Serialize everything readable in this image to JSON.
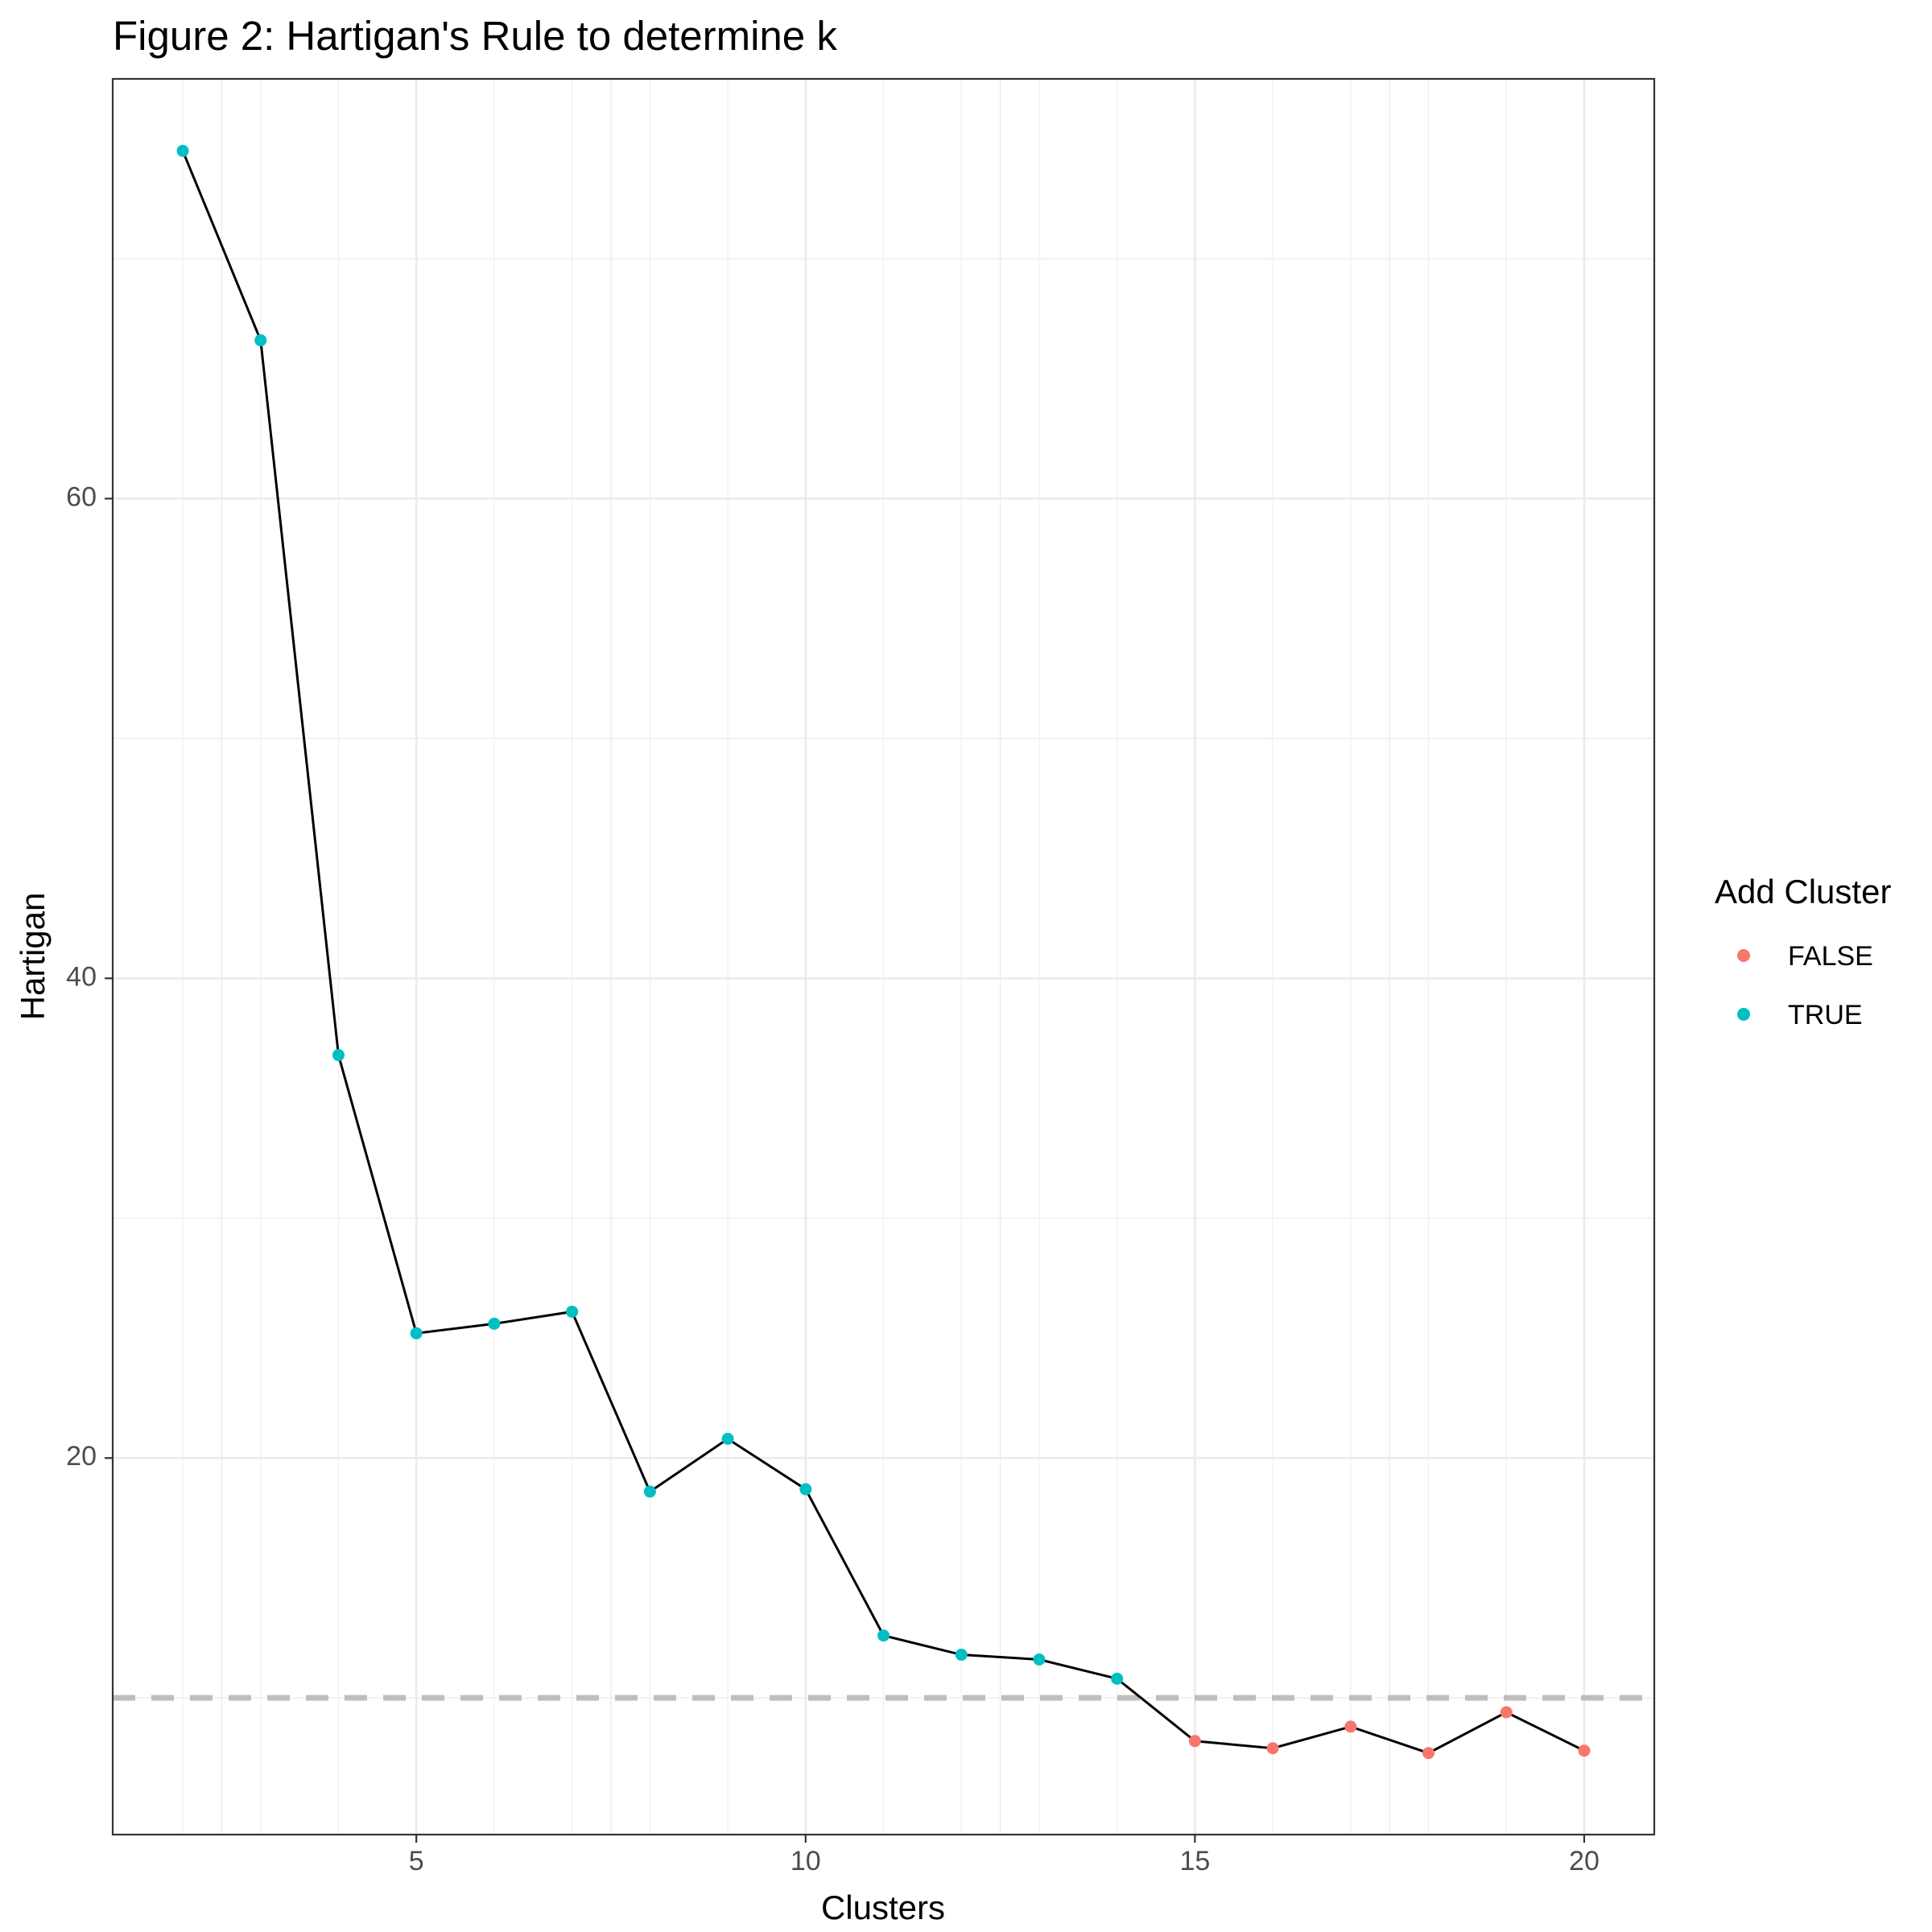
{
  "chart_data": {
    "type": "line",
    "title": "Figure 2: Hartigan's Rule to determine k",
    "xlabel": "Clusters",
    "ylabel": "Hartigan",
    "xlim": [
      1.1,
      20.9
    ],
    "ylim": [
      4.3,
      77.5
    ],
    "x_ticks": [
      5,
      10,
      15,
      20
    ],
    "y_ticks": [
      20,
      40,
      60
    ],
    "x_tick_labels": [
      "5",
      "10",
      "15",
      "20"
    ],
    "y_tick_labels": [
      "20",
      "40",
      "60"
    ],
    "grid": true,
    "reference_line": {
      "y": 10,
      "style": "dashed",
      "color": "#bebebe"
    },
    "legend": {
      "title": "Add Cluster",
      "placement": "right",
      "entries": [
        {
          "label": "FALSE",
          "color": "#F8766D"
        },
        {
          "label": "TRUE",
          "color": "#00BFC4"
        }
      ]
    },
    "series": [
      {
        "x": [
          2,
          3,
          4,
          5,
          6,
          7,
          8,
          9,
          10,
          11,
          12,
          13,
          14,
          15,
          16,
          17,
          18,
          19,
          20
        ],
        "y": [
          74.5,
          66.6,
          36.8,
          25.2,
          25.6,
          26.1,
          18.6,
          20.8,
          18.7,
          12.6,
          11.8,
          11.6,
          10.8,
          8.2,
          7.9,
          8.8,
          7.7,
          9.4,
          7.8
        ],
        "group": [
          "TRUE",
          "TRUE",
          "TRUE",
          "TRUE",
          "TRUE",
          "TRUE",
          "TRUE",
          "TRUE",
          "TRUE",
          "TRUE",
          "TRUE",
          "TRUE",
          "TRUE",
          "FALSE",
          "FALSE",
          "FALSE",
          "FALSE",
          "FALSE",
          "FALSE"
        ]
      }
    ]
  }
}
